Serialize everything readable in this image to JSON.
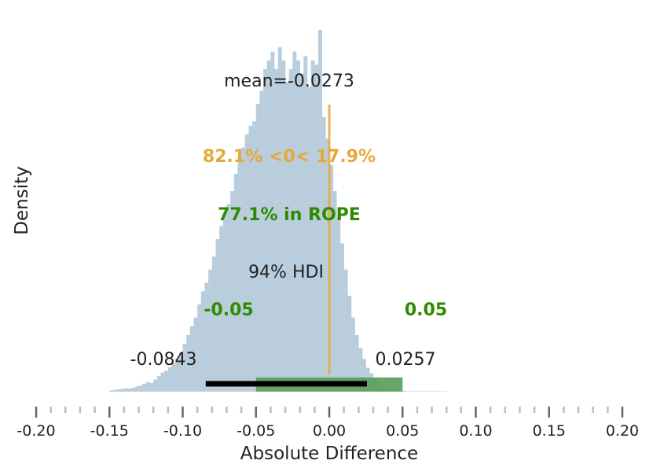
{
  "chart_data": {
    "type": "bar",
    "title": "",
    "xlabel": "Absolute Difference",
    "ylabel": "Density",
    "xlim": [
      -0.2,
      0.2
    ],
    "xticks": [
      -0.2,
      -0.15,
      -0.1,
      -0.05,
      0.0,
      0.05,
      0.1,
      0.15,
      0.2
    ],
    "xtick_labels": [
      "-0.20",
      "-0.15",
      "-0.10",
      "-0.05",
      "0.00",
      "0.05",
      "0.10",
      "0.15",
      "0.20"
    ],
    "grid": false,
    "legend": "none",
    "histogram": {
      "bin_width": 0.0025,
      "bin_start": -0.15,
      "counts": [
        0.3,
        0.4,
        0.5,
        0.6,
        0.8,
        0.7,
        0.9,
        1.2,
        1.4,
        1.8,
        2.2,
        2.0,
        2.8,
        3.6,
        4.4,
        4.8,
        5.6,
        6.6,
        7.6,
        9.0,
        11.0,
        13.0,
        15.0,
        17.0,
        20.0,
        23.0,
        25.0,
        28.0,
        31.0,
        35.0,
        38.0,
        41.0,
        43.0,
        46.0,
        50.0,
        54.0,
        56.0,
        59.0,
        61.0,
        62.0,
        66.0,
        69.0,
        74.0,
        76.0,
        78.0,
        74.0,
        79.0,
        76.0,
        71.0,
        74.0,
        78.0,
        76.0,
        73.0,
        77.0,
        70.0,
        76.0,
        75.0,
        83.0,
        63.0,
        58.0,
        52.0,
        46.0,
        40.0,
        34.0,
        28.0,
        22.0,
        17.0,
        13.0,
        10.0,
        7.5,
        5.5,
        4.2,
        3.2,
        2.2,
        1.5,
        1.0,
        0.7,
        0.5,
        0.4,
        0.3,
        0.2,
        0.1,
        0.1,
        0.1,
        0.1,
        0.1,
        0.1,
        0.1,
        0.1,
        0.1,
        0.1,
        0.1
      ],
      "color": "#b9cddc"
    },
    "mean_label": "mean=-0.0273",
    "zero_reference": {
      "value": 0.0,
      "label": "82.1% <0< 17.9%",
      "color": "#e5a93a"
    },
    "rope": {
      "low": -0.05,
      "high": 0.05,
      "low_label": "-0.05",
      "high_label": "0.05",
      "label": "77.1% in ROPE",
      "color": "#2e8b00",
      "band_color": "#5c9e5c"
    },
    "hdi": {
      "label": "94% HDI",
      "low": -0.0843,
      "high": 0.0257,
      "low_label": "-0.0843",
      "high_label": "0.0257",
      "color": "#000000"
    }
  }
}
